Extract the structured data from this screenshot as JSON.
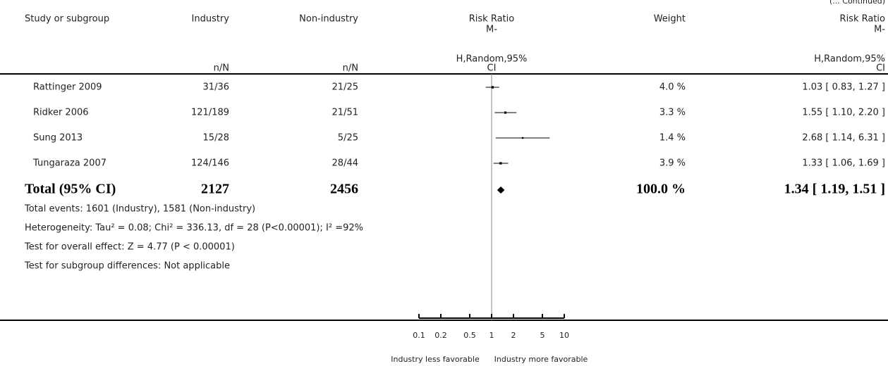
{
  "chart_data": {
    "type": "forest",
    "continued": "(... Continued)",
    "headers": {
      "study": "Study or subgroup",
      "industry": "Industry",
      "industry_sub": "n/N",
      "non_industry": "Non-industry",
      "non_industry_sub": "n/N",
      "rr_plot": [
        "Risk Ratio",
        "M-",
        "H,Random,95%",
        "CI"
      ],
      "weight": "Weight",
      "rr": [
        "Risk Ratio",
        "M-",
        "H,Random,95%",
        "CI"
      ]
    },
    "studies": [
      {
        "name": "Rattinger 2009",
        "industry": "31/36",
        "non_industry": "21/25",
        "rr": 1.03,
        "lo": 0.83,
        "hi": 1.27,
        "weight": {
          "value": 4.0,
          "label": "4.0 %"
        },
        "rr_label": "1.03 [ 0.83, 1.27 ]"
      },
      {
        "name": "Ridker 2006",
        "industry": "121/189",
        "non_industry": "21/51",
        "rr": 1.55,
        "lo": 1.1,
        "hi": 2.2,
        "weight": {
          "value": 3.3,
          "label": "3.3 %"
        },
        "rr_label": "1.55 [ 1.10, 2.20 ]"
      },
      {
        "name": "Sung 2013",
        "industry": "15/28",
        "non_industry": "5/25",
        "rr": 2.68,
        "lo": 1.14,
        "hi": 6.31,
        "weight": {
          "value": 1.4,
          "label": "1.4 %"
        },
        "rr_label": "2.68 [ 1.14, 6.31 ]"
      },
      {
        "name": "Tungaraza 2007",
        "industry": "124/146",
        "non_industry": "28/44",
        "rr": 1.33,
        "lo": 1.06,
        "hi": 1.69,
        "weight": {
          "value": 3.9,
          "label": "3.9 %"
        },
        "rr_label": "1.33 [ 1.06, 1.69 ]"
      }
    ],
    "total": {
      "name": "Total (95% CI)",
      "industry": "2127",
      "non_industry": "2456",
      "rr": 1.34,
      "lo": 1.19,
      "hi": 1.51,
      "weight": {
        "value": 100.0,
        "label": "100.0 %"
      },
      "rr_label": "1.34 [ 1.19, 1.51 ]"
    },
    "notes": [
      "Total events: 1601 (Industry), 1581 (Non-industry)",
      "Heterogeneity: Tau² = 0.08; Chi² = 336.13, df = 28 (P<0.00001); I² =92%",
      "Test for overall effect: Z = 4.77 (P < 0.00001)",
      "Test for subgroup differences: Not applicable"
    ],
    "xlim": [
      0.1,
      10
    ],
    "log_x": true,
    "xticks": [
      0.1,
      0.2,
      0.5,
      1,
      2,
      5,
      10
    ],
    "x_label_left": "Industry less favorable",
    "x_label_right": "Industry more favorable"
  }
}
